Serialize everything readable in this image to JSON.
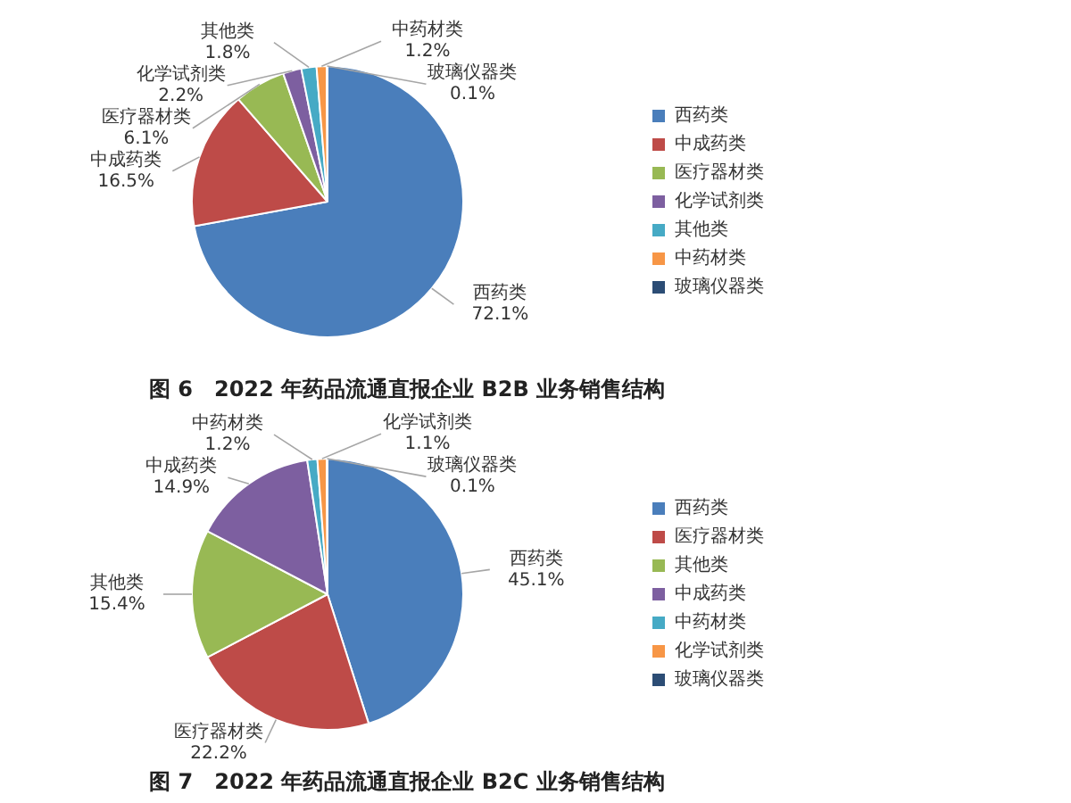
{
  "chart_data": [
    {
      "type": "pie",
      "title": "图 6　2022 年药品流通直报企业 B2B 业务销售结构",
      "legend": "right",
      "categories": [
        "西药类",
        "中成药类",
        "医疗器材类",
        "化学试剂类",
        "其他类",
        "中药材类",
        "玻璃仪器类"
      ],
      "values": [
        72.1,
        16.5,
        6.1,
        2.2,
        1.8,
        1.2,
        0.1
      ],
      "value_labels": [
        "72.1%",
        "16.5%",
        "6.1%",
        "2.2%",
        "1.8%",
        "1.2%",
        "0.1%"
      ],
      "colors": [
        "#4a7ebb",
        "#be4b48",
        "#98b954",
        "#7d5fa0",
        "#46aac5",
        "#f79646",
        "#2c4d75"
      ]
    },
    {
      "type": "pie",
      "title": "图 7　2022 年药品流通直报企业 B2C 业务销售结构",
      "legend": "right",
      "categories": [
        "西药类",
        "医疗器材类",
        "其他类",
        "中成药类",
        "中药材类",
        "化学试剂类",
        "玻璃仪器类"
      ],
      "values": [
        45.1,
        22.2,
        15.4,
        14.9,
        1.2,
        1.1,
        0.1
      ],
      "value_labels": [
        "45.1%",
        "22.2%",
        "15.4%",
        "14.9%",
        "1.2%",
        "1.1%",
        "0.1%"
      ],
      "colors": [
        "#4a7ebb",
        "#be4b48",
        "#98b954",
        "#7d5fa0",
        "#46aac5",
        "#f79646",
        "#2c4d75"
      ]
    }
  ]
}
